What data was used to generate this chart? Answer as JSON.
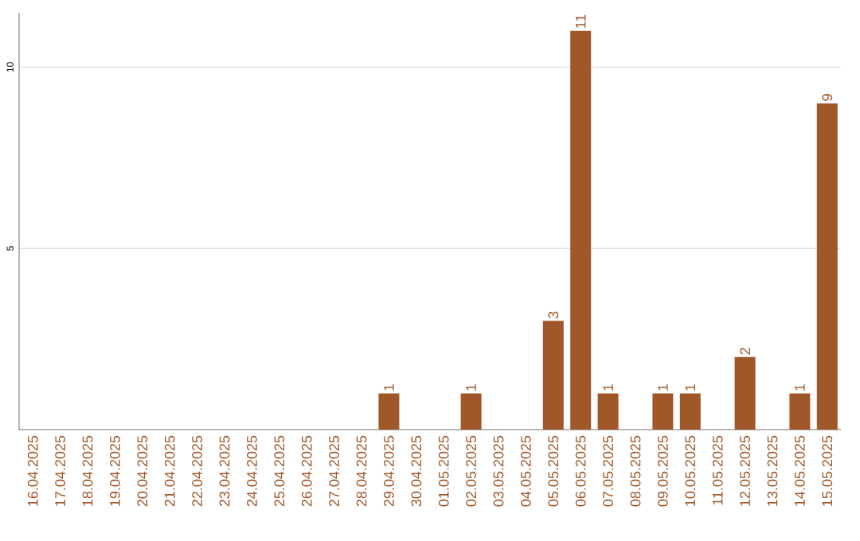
{
  "chart_data": {
    "type": "bar",
    "categories": [
      "16.04.2025",
      "17.04.2025",
      "18.04.2025",
      "19.04.2025",
      "20.04.2025",
      "21.04.2025",
      "22.04.2025",
      "23.04.2025",
      "24.04.2025",
      "25.04.2025",
      "26.04.2025",
      "27.04.2025",
      "28.04.2025",
      "29.04.2025",
      "30.04.2025",
      "01.05.2025",
      "02.05.2025",
      "03.05.2025",
      "04.05.2025",
      "05.05.2025",
      "06.05.2025",
      "07.05.2025",
      "08.05.2025",
      "09.05.2025",
      "10.05.2025",
      "11.05.2025",
      "12.05.2025",
      "13.05.2025",
      "14.05.2025",
      "15.05.2025"
    ],
    "values": [
      0,
      0,
      0,
      0,
      0,
      0,
      0,
      0,
      0,
      0,
      0,
      0,
      0,
      1,
      0,
      0,
      1,
      0,
      0,
      3,
      11,
      1,
      0,
      1,
      1,
      0,
      2,
      0,
      1,
      9
    ],
    "value_labels": [
      null,
      null,
      null,
      null,
      null,
      null,
      null,
      null,
      null,
      null,
      null,
      null,
      null,
      "1",
      null,
      null,
      "1",
      null,
      null,
      "3",
      "11",
      "1",
      null,
      "1",
      "1",
      null,
      "2",
      null,
      "1",
      "9"
    ],
    "color": "#a0582a",
    "ylim": [
      0,
      11.5
    ],
    "yticks": [
      5,
      10
    ],
    "grid": "y"
  }
}
